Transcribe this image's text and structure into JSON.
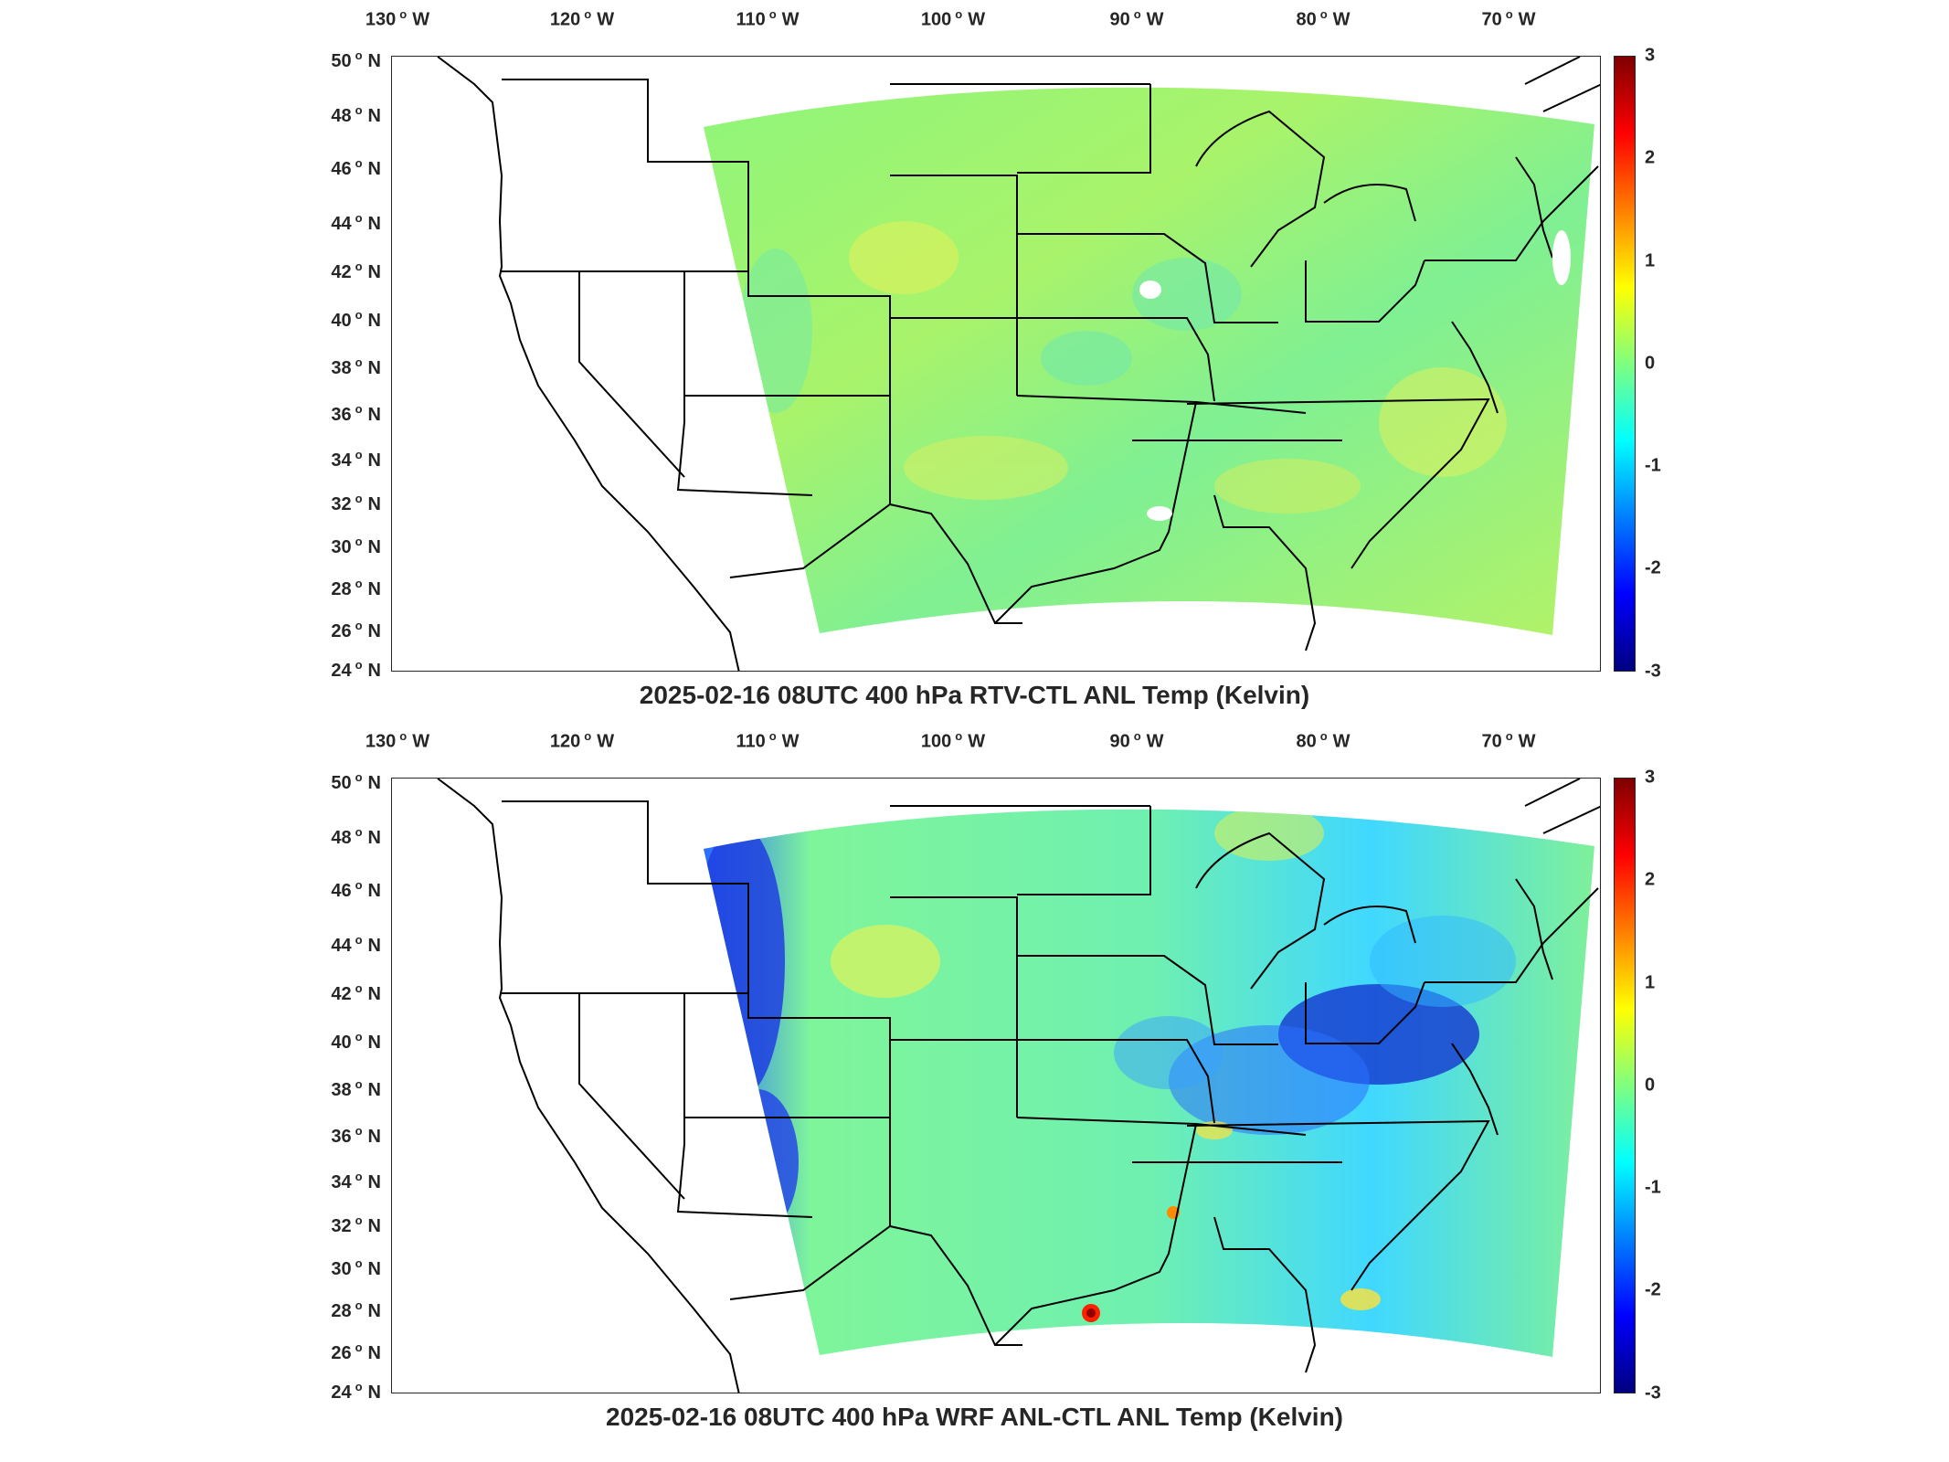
{
  "figure": {
    "lon_labels": [
      "130",
      "120",
      "110",
      "100",
      "90",
      "80",
      "70"
    ],
    "lon_suffix": "W",
    "lat_labels": [
      "50",
      "48",
      "46",
      "44",
      "42",
      "40",
      "38",
      "36",
      "34",
      "32",
      "30",
      "28",
      "26",
      "24"
    ],
    "lat_suffix": "N",
    "degree_symbol": "o",
    "colorbar": {
      "ticks": [
        "3",
        "2",
        "1",
        "0",
        "-1",
        "-2",
        "-3"
      ],
      "range": [
        -3,
        3
      ],
      "colormap": "jet",
      "colors": [
        "#00007f",
        "#0000ff",
        "#007fff",
        "#00ffff",
        "#7fff7f",
        "#ffff00",
        "#ff7f00",
        "#ff0000",
        "#7f0000"
      ]
    }
  },
  "panels": [
    {
      "title": "2025-02-16 08UTC 400 hPa RTV-CTL ANL Temp (Kelvin)",
      "field_description": "mostly near-zero values (green/yellow-green), weak variability"
    },
    {
      "title": "2025-02-16 08UTC 400 hPa WRF ANL-CTL ANL Temp (Kelvin)",
      "field_description": "strong negative (blue) along western edge and Great Lakes / Northeast; positive spots near Gulf coast"
    }
  ]
}
